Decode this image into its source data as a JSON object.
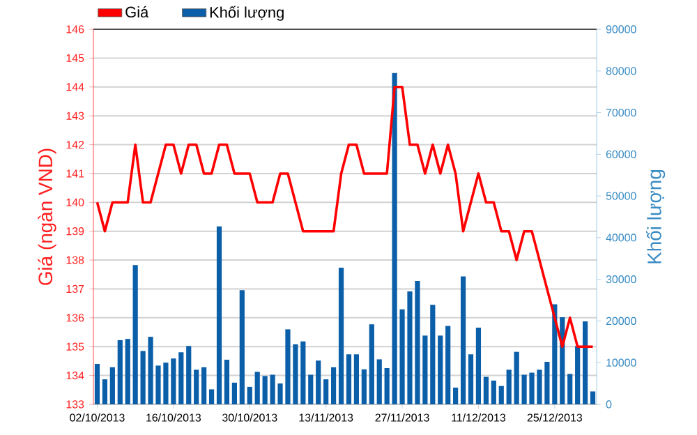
{
  "chart_data": {
    "type": "line",
    "categories": [
      "02/10/2013",
      null,
      null,
      null,
      null,
      null,
      null,
      null,
      null,
      null,
      "16/10/2013",
      null,
      null,
      null,
      null,
      null,
      null,
      null,
      null,
      null,
      "30/10/2013",
      null,
      null,
      null,
      null,
      null,
      null,
      null,
      null,
      null,
      "13/11/2013",
      null,
      null,
      null,
      null,
      null,
      null,
      null,
      null,
      null,
      "27/11/2013",
      null,
      null,
      null,
      null,
      null,
      null,
      null,
      null,
      null,
      "11/12/2013",
      null,
      null,
      null,
      null,
      null,
      null,
      null,
      null,
      null,
      "25/12/2013",
      null,
      null,
      null,
      null,
      null
    ],
    "series": [
      {
        "name": "Giá",
        "axis": "y",
        "color": "#ff0000",
        "values": [
          140,
          139,
          140,
          140,
          140,
          142,
          140,
          140,
          141,
          142,
          142,
          141,
          142,
          142,
          141,
          141,
          142,
          142,
          141,
          141,
          141,
          140,
          140,
          140,
          141,
          141,
          140,
          139,
          139,
          139,
          139,
          139,
          141,
          142,
          142,
          141,
          141,
          141,
          141,
          144,
          144,
          142,
          142,
          141,
          142,
          141,
          142,
          141,
          139,
          140,
          141,
          140,
          140,
          139,
          139,
          138,
          139,
          139,
          138,
          137,
          136,
          135,
          136,
          135,
          135,
          135
        ]
      },
      {
        "name": "Khối lượng",
        "type": "bar",
        "axis": "y2",
        "color": "#0b5ea8",
        "values": [
          9700,
          6000,
          8900,
          15400,
          15700,
          33400,
          12800,
          16200,
          9300,
          10000,
          11000,
          12500,
          14000,
          8300,
          8900,
          3600,
          42700,
          10700,
          5200,
          27400,
          4200,
          7800,
          6800,
          7100,
          5000,
          18000,
          14400,
          15100,
          7100,
          10500,
          6000,
          8900,
          32800,
          12000,
          12000,
          8400,
          19200,
          10800,
          8700,
          79500,
          22800,
          27100,
          29600,
          16500,
          23900,
          16500,
          18800,
          4000,
          30700,
          12000,
          18400,
          6600,
          5700,
          4400,
          8300,
          12600,
          7100,
          7600,
          8300,
          10200,
          24000,
          20900,
          7300,
          14000,
          19900,
          3100
        ]
      }
    ],
    "ylabel": "Giá (ngàn VND)",
    "y2label": "Khối lượng",
    "ylim": [
      133,
      146
    ],
    "yticks": [
      133,
      134,
      135,
      136,
      137,
      138,
      139,
      140,
      141,
      142,
      143,
      144,
      145,
      146
    ],
    "y2lim": [
      0,
      90000
    ],
    "y2ticks": [
      0,
      10000,
      20000,
      30000,
      40000,
      50000,
      60000,
      70000,
      80000,
      90000
    ],
    "grid": "y",
    "legend": "top left"
  }
}
